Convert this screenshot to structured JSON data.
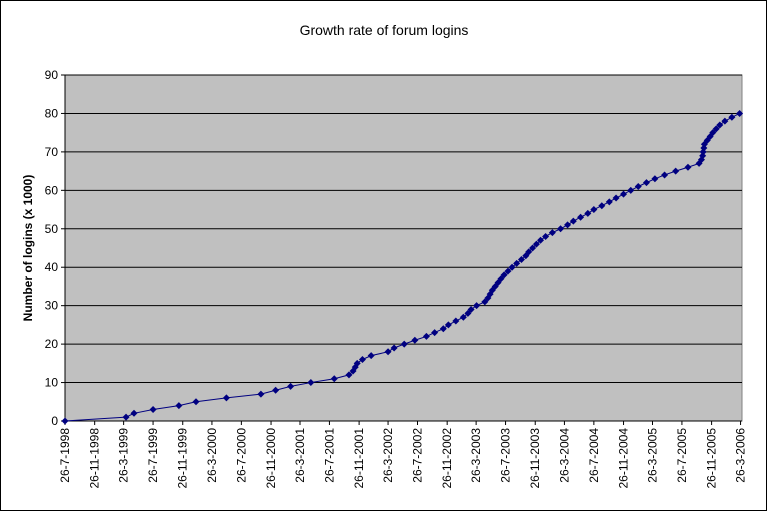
{
  "chart_data": {
    "type": "line",
    "title": "Growth rate of forum logins",
    "y_label": "Number of logins (x 1000)",
    "color": "#000080",
    "plot_background": "#c0c0c0",
    "grid": true,
    "x": [
      "1998-07-26",
      "1999-04-05",
      "1999-05-08",
      "1999-07-26",
      "1999-11-10",
      "2000-01-20",
      "2000-05-25",
      "2000-10-15",
      "2000-12-15",
      "2001-02-15",
      "2001-05-10",
      "2001-08-15",
      "2001-10-15",
      "2001-11-01",
      "2001-11-10",
      "2001-11-18",
      "2001-12-10",
      "2002-01-15",
      "2002-03-26",
      "2002-04-20",
      "2002-06-01",
      "2002-07-15",
      "2002-09-01",
      "2002-10-05",
      "2002-11-10",
      "2002-12-01",
      "2003-01-01",
      "2003-02-01",
      "2003-02-20",
      "2003-03-05",
      "2003-03-28",
      "2003-05-01",
      "2003-05-14",
      "2003-05-23",
      "2003-06-01",
      "2003-06-13",
      "2003-06-25",
      "2003-07-07",
      "2003-07-20",
      "2003-08-05",
      "2003-08-22",
      "2003-09-10",
      "2003-09-30",
      "2003-10-18",
      "2003-10-30",
      "2003-11-15",
      "2003-12-01",
      "2003-12-18",
      "2004-01-08",
      "2004-02-05",
      "2004-03-10",
      "2004-04-08",
      "2004-05-02",
      "2004-06-01",
      "2004-07-01",
      "2004-07-26",
      "2004-08-28",
      "2004-09-28",
      "2004-10-26",
      "2004-11-26",
      "2004-12-26",
      "2005-01-26",
      "2005-03-01",
      "2005-04-05",
      "2005-05-15",
      "2005-06-30",
      "2005-08-20",
      "2005-10-05",
      "2005-10-15",
      "2005-10-20",
      "2005-10-22",
      "2005-10-25",
      "2005-10-27",
      "2005-11-08",
      "2005-11-20",
      "2005-12-01",
      "2005-12-15",
      "2005-12-30",
      "2006-01-20",
      "2006-02-18",
      "2006-03-22"
    ],
    "values": [
      0,
      1,
      2,
      3,
      4,
      5,
      6,
      7,
      8,
      9,
      10,
      11,
      12,
      13,
      14,
      15,
      16,
      17,
      18,
      19,
      20,
      21,
      22,
      23,
      24,
      25,
      26,
      27,
      28,
      29,
      30,
      31,
      32,
      33,
      34,
      35,
      36,
      37,
      38,
      39,
      40,
      41,
      42,
      43,
      44,
      45,
      46,
      47,
      48,
      49,
      50,
      51,
      52,
      53,
      54,
      55,
      56,
      57,
      58,
      59,
      60,
      61,
      62,
      63,
      64,
      65,
      66,
      67,
      68,
      69,
      70,
      71,
      72,
      73,
      74,
      75,
      76,
      77,
      78,
      79,
      80
    ],
    "xlim": [
      "1998-07-26",
      "2006-04-01"
    ],
    "xticks": [
      {
        "value": "1998-07-26",
        "label": "26-7-1998"
      },
      {
        "value": "1998-11-26",
        "label": "26-11-1998"
      },
      {
        "value": "1999-03-26",
        "label": "26-3-1999"
      },
      {
        "value": "1999-07-26",
        "label": "26-7-1999"
      },
      {
        "value": "1999-11-26",
        "label": "26-11-1999"
      },
      {
        "value": "2000-03-26",
        "label": "26-3-2000"
      },
      {
        "value": "2000-07-26",
        "label": "26-7-2000"
      },
      {
        "value": "2000-11-26",
        "label": "26-11-2000"
      },
      {
        "value": "2001-03-26",
        "label": "26-3-2001"
      },
      {
        "value": "2001-07-26",
        "label": "26-7-2001"
      },
      {
        "value": "2001-11-26",
        "label": "26-11-2001"
      },
      {
        "value": "2002-03-26",
        "label": "26-3-2002"
      },
      {
        "value": "2002-07-26",
        "label": "26-7-2002"
      },
      {
        "value": "2002-11-26",
        "label": "26-11-2002"
      },
      {
        "value": "2003-03-26",
        "label": "26-3-2003"
      },
      {
        "value": "2003-07-26",
        "label": "26-7-2003"
      },
      {
        "value": "2003-11-26",
        "label": "26-11-2003"
      },
      {
        "value": "2004-03-26",
        "label": "26-3-2004"
      },
      {
        "value": "2004-07-26",
        "label": "26-7-2004"
      },
      {
        "value": "2004-11-26",
        "label": "26-11-2004"
      },
      {
        "value": "2005-03-26",
        "label": "26-3-2005"
      },
      {
        "value": "2005-07-26",
        "label": "26-7-2005"
      },
      {
        "value": "2005-11-26",
        "label": "26-11-2005"
      },
      {
        "value": "2006-03-26",
        "label": "26-3-2006"
      }
    ],
    "ylim": [
      0,
      90
    ],
    "yticks": [
      0,
      10,
      20,
      30,
      40,
      50,
      60,
      70,
      80,
      90
    ]
  }
}
